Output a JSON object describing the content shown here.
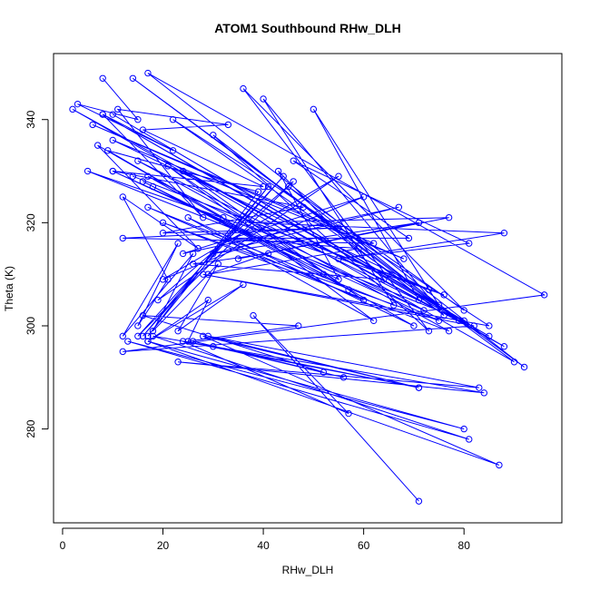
{
  "chart_data": {
    "type": "line",
    "title": "ATOM1 Southbound RHw_DLH",
    "xlabel": "RHw_DLH",
    "ylabel": "Theta (K)",
    "xlim": [
      -1.8,
      99.5
    ],
    "ylim": [
      261.8,
      352.8
    ],
    "x_ticks": [
      0,
      20,
      40,
      60,
      80
    ],
    "y_ticks": [
      280,
      300,
      320,
      340
    ],
    "grid": false,
    "legend": "none",
    "line_color": "#0000ff",
    "marker": "open-circle",
    "series": [
      {
        "x": [
          8,
          15,
          3,
          22,
          8,
          28,
          11,
          33,
          16,
          40,
          10,
          48,
          20,
          55,
          12,
          62,
          6,
          68,
          10,
          73,
          14,
          76,
          5,
          80,
          10,
          85,
          8,
          88,
          2,
          90,
          14,
          92,
          17,
          96,
          12,
          82,
          28,
          85,
          22,
          79,
          15,
          77,
          20,
          75,
          10,
          72,
          17,
          70,
          25,
          62,
          21,
          60,
          17,
          66,
          40,
          76,
          30,
          73,
          36,
          80,
          45,
          75,
          50,
          71,
          24,
          57,
          18,
          52,
          16,
          55,
          43,
          64,
          26,
          41,
          29,
          59,
          33,
          69,
          46,
          81,
          55,
          88,
          37,
          77,
          35,
          71,
          30,
          67,
          24,
          60,
          20,
          55,
          19,
          46,
          15,
          44,
          16,
          41,
          17,
          39,
          9,
          32,
          7,
          27,
          12,
          21,
          15,
          23,
          12,
          26,
          18,
          31,
          23,
          36,
          17,
          29,
          25,
          47,
          16,
          52,
          26,
          56,
          30,
          71,
          29,
          83,
          23,
          84,
          18,
          81,
          13,
          80,
          17,
          87,
          28,
          71,
          24,
          57,
          38,
          71
        ],
        "y": [
          348,
          340,
          343,
          334,
          341,
          321,
          342,
          339,
          338,
          327,
          330,
          323,
          318,
          319,
          317,
          316,
          339,
          313,
          336,
          307,
          329,
          306,
          330,
          301,
          341,
          298,
          341,
          296,
          342,
          293,
          348,
          292,
          349,
          306,
          295,
          300,
          310,
          300,
          340,
          301,
          332,
          299,
          320,
          301,
          330,
          303,
          329,
          300,
          321,
          301,
          331,
          305,
          323,
          304,
          344,
          302,
          337,
          299,
          346,
          303,
          327,
          304,
          342,
          305,
          330,
          307,
          327,
          310,
          328,
          309,
          330,
          309,
          312,
          314,
          310,
          315,
          317,
          317,
          332,
          316,
          313,
          318,
          320,
          321,
          313,
          320,
          314,
          323,
          314,
          325,
          309,
          329,
          305,
          328,
          298,
          329,
          298,
          327,
          298,
          326,
          334,
          321,
          335,
          315,
          325,
          309,
          300,
          316,
          298,
          314,
          299,
          312,
          299,
          308,
          297,
          305,
          297,
          300,
          302,
          291,
          297,
          290,
          296,
          288,
          298,
          288,
          293,
          287,
          298,
          278,
          297,
          280,
          297,
          273,
          298,
          288,
          297,
          283,
          302,
          266
        ]
      }
    ]
  }
}
